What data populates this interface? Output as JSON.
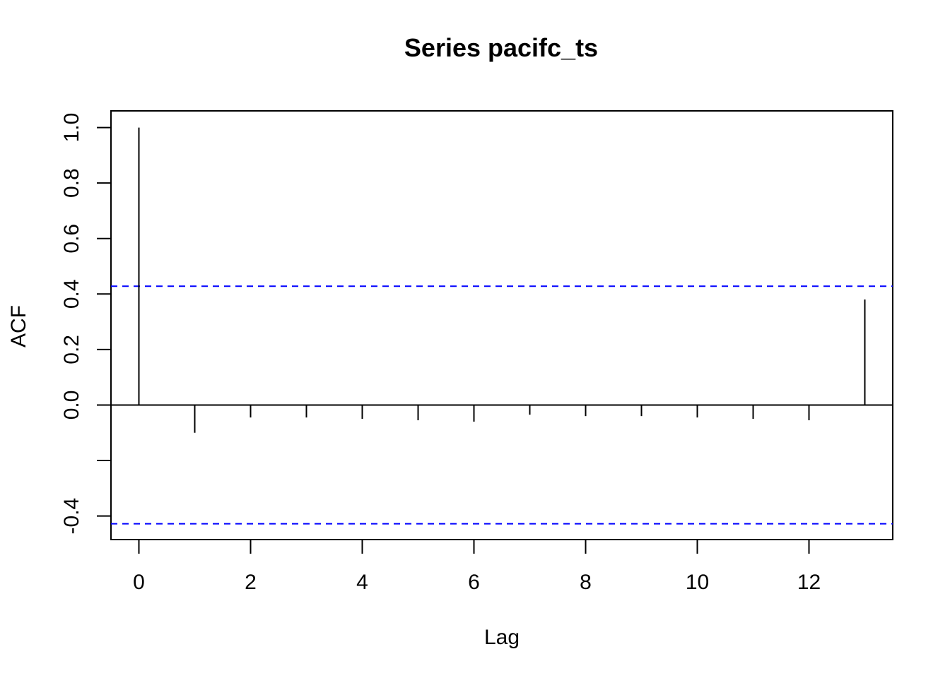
{
  "chart_data": {
    "type": "bar",
    "title": "Series  pacifc_ts",
    "xlabel": "Lag",
    "ylabel": "ACF",
    "x": [
      0,
      1,
      2,
      3,
      4,
      5,
      6,
      7,
      8,
      9,
      10,
      11,
      12,
      13
    ],
    "values": [
      1.0,
      -0.1,
      -0.045,
      -0.045,
      -0.05,
      -0.055,
      -0.06,
      -0.035,
      -0.04,
      -0.04,
      -0.045,
      -0.05,
      -0.055,
      0.38
    ],
    "xlim": [
      -0.5,
      13.5
    ],
    "ylim": [
      -0.485,
      1.06
    ],
    "xticks": [
      0,
      2,
      4,
      6,
      8,
      10,
      12
    ],
    "xtick_labels": [
      "0",
      "2",
      "4",
      "6",
      "8",
      "10",
      "12"
    ],
    "yticks": [
      -0.4,
      -0.2,
      0.0,
      0.2,
      0.4,
      0.6,
      0.8,
      1.0
    ],
    "ytick_labels": [
      "-0.4",
      "",
      "0.0",
      "0.2",
      "0.4",
      "0.6",
      "0.8",
      "1.0"
    ],
    "confidence_bounds": [
      0.428,
      -0.428
    ],
    "confidence_color": "#0000ff",
    "bar_color": "#000000",
    "grid": false
  }
}
